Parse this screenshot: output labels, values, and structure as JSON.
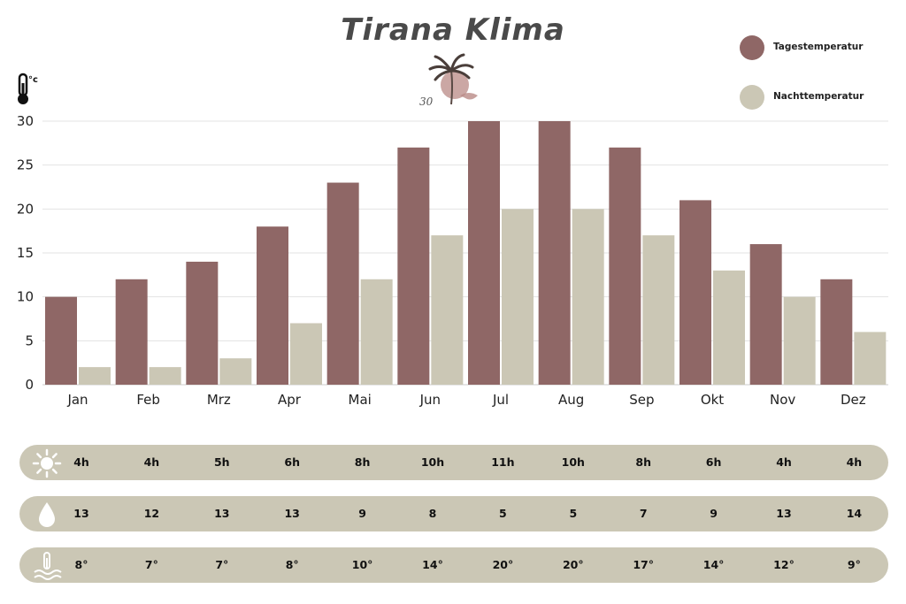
{
  "title": "Tirana Klima",
  "logo_text": "30",
  "unit_label": "°c",
  "legend": {
    "day": "Tagestemperatur",
    "night": "Nachttemperatur"
  },
  "colors": {
    "day": "#8f6766",
    "night": "#cbc7b5",
    "row_bg": "#cbc7b5",
    "grid": "#e3e3e3"
  },
  "chart_data": {
    "type": "bar",
    "categories": [
      "Jan",
      "Feb",
      "Mrz",
      "Apr",
      "Mai",
      "Jun",
      "Jul",
      "Aug",
      "Sep",
      "Okt",
      "Nov",
      "Dez"
    ],
    "series": [
      {
        "name": "Tagestemperatur",
        "values": [
          10,
          12,
          14,
          18,
          23,
          27,
          30,
          30,
          27,
          21,
          16,
          12
        ]
      },
      {
        "name": "Nachttemperatur",
        "values": [
          2,
          2,
          3,
          7,
          12,
          17,
          20,
          20,
          17,
          13,
          10,
          6
        ]
      }
    ],
    "yticks": [
      0,
      5,
      10,
      15,
      20,
      25,
      30
    ],
    "ylim": [
      0,
      30
    ],
    "grid": true,
    "legend_position": "top-right"
  },
  "rows": [
    {
      "icon": "sun-icon",
      "name": "sunshine-hours",
      "values": [
        "4h",
        "4h",
        "5h",
        "6h",
        "8h",
        "10h",
        "11h",
        "10h",
        "8h",
        "6h",
        "4h",
        "4h"
      ]
    },
    {
      "icon": "water-drop-icon",
      "name": "rain-days",
      "values": [
        "13",
        "12",
        "13",
        "13",
        "9",
        "8",
        "5",
        "5",
        "7",
        "9",
        "13",
        "14"
      ]
    },
    {
      "icon": "water-thermometer-icon",
      "name": "water-temperature",
      "values": [
        "8°",
        "7°",
        "7°",
        "8°",
        "10°",
        "14°",
        "20°",
        "20°",
        "17°",
        "14°",
        "12°",
        "9°"
      ]
    }
  ]
}
